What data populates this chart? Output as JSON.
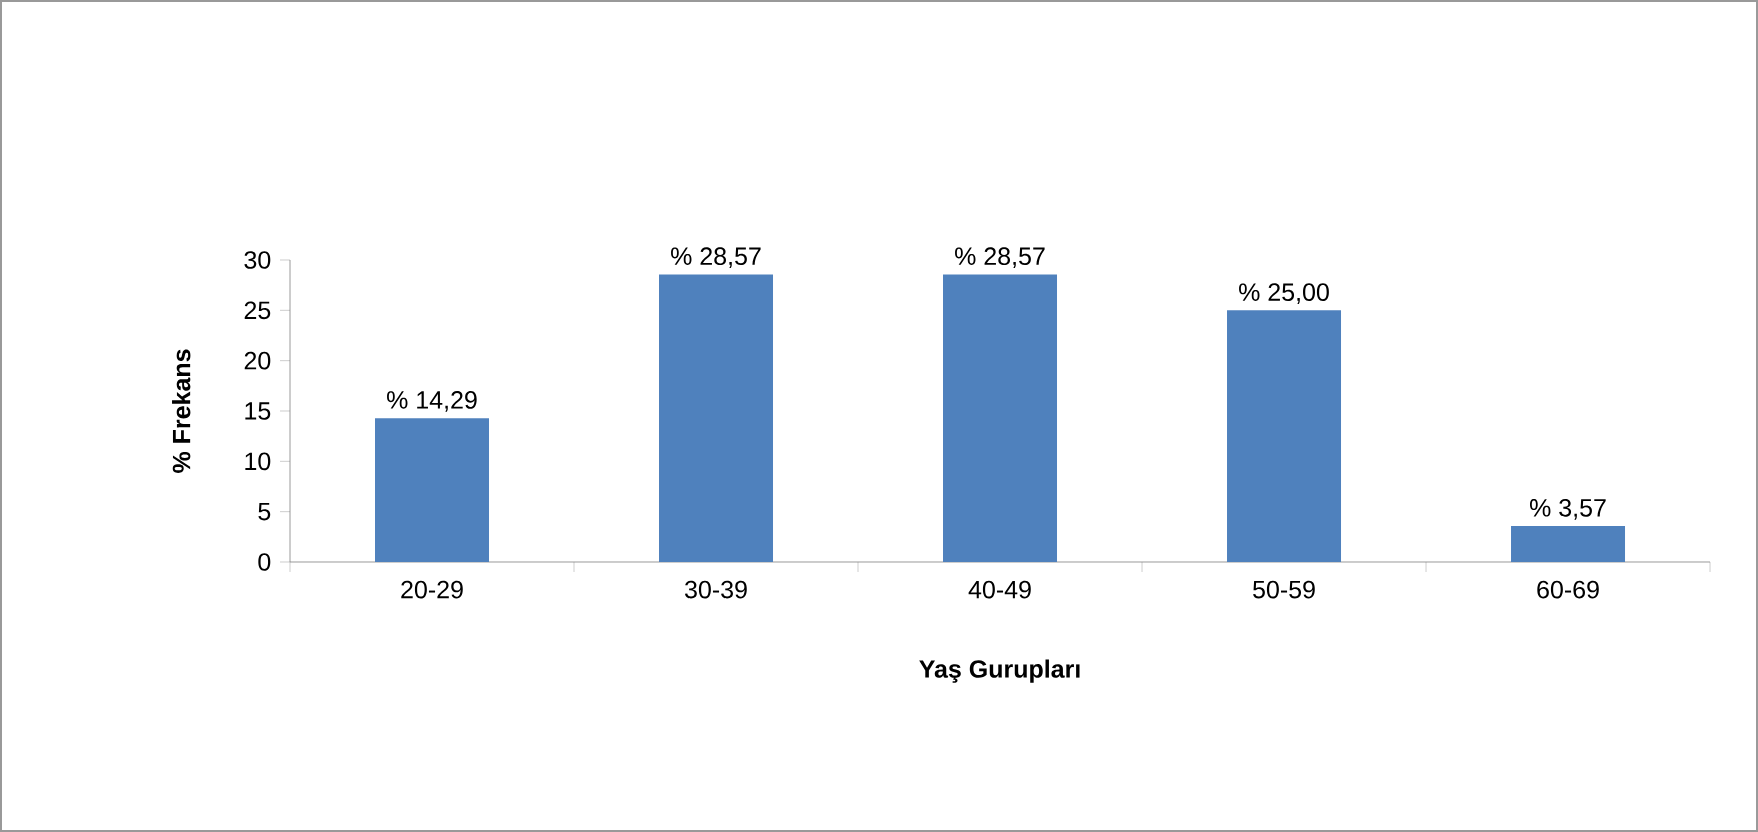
{
  "chart_data": {
    "type": "bar",
    "xlabel": "Yaş Gurupları",
    "ylabel": "% Frekans",
    "categories": [
      "20-29",
      "30-39",
      "40-49",
      "50-59",
      "60-69"
    ],
    "values": [
      14.29,
      28.57,
      28.57,
      25.0,
      3.57
    ],
    "value_labels": [
      "% 14,29",
      "% 28,57",
      "% 28,57",
      "% 25,00",
      "% 3,57"
    ],
    "color": "#4f81bd",
    "ylim": [
      0,
      30
    ],
    "yticks": [
      0,
      5,
      10,
      15,
      20,
      25,
      30
    ]
  }
}
